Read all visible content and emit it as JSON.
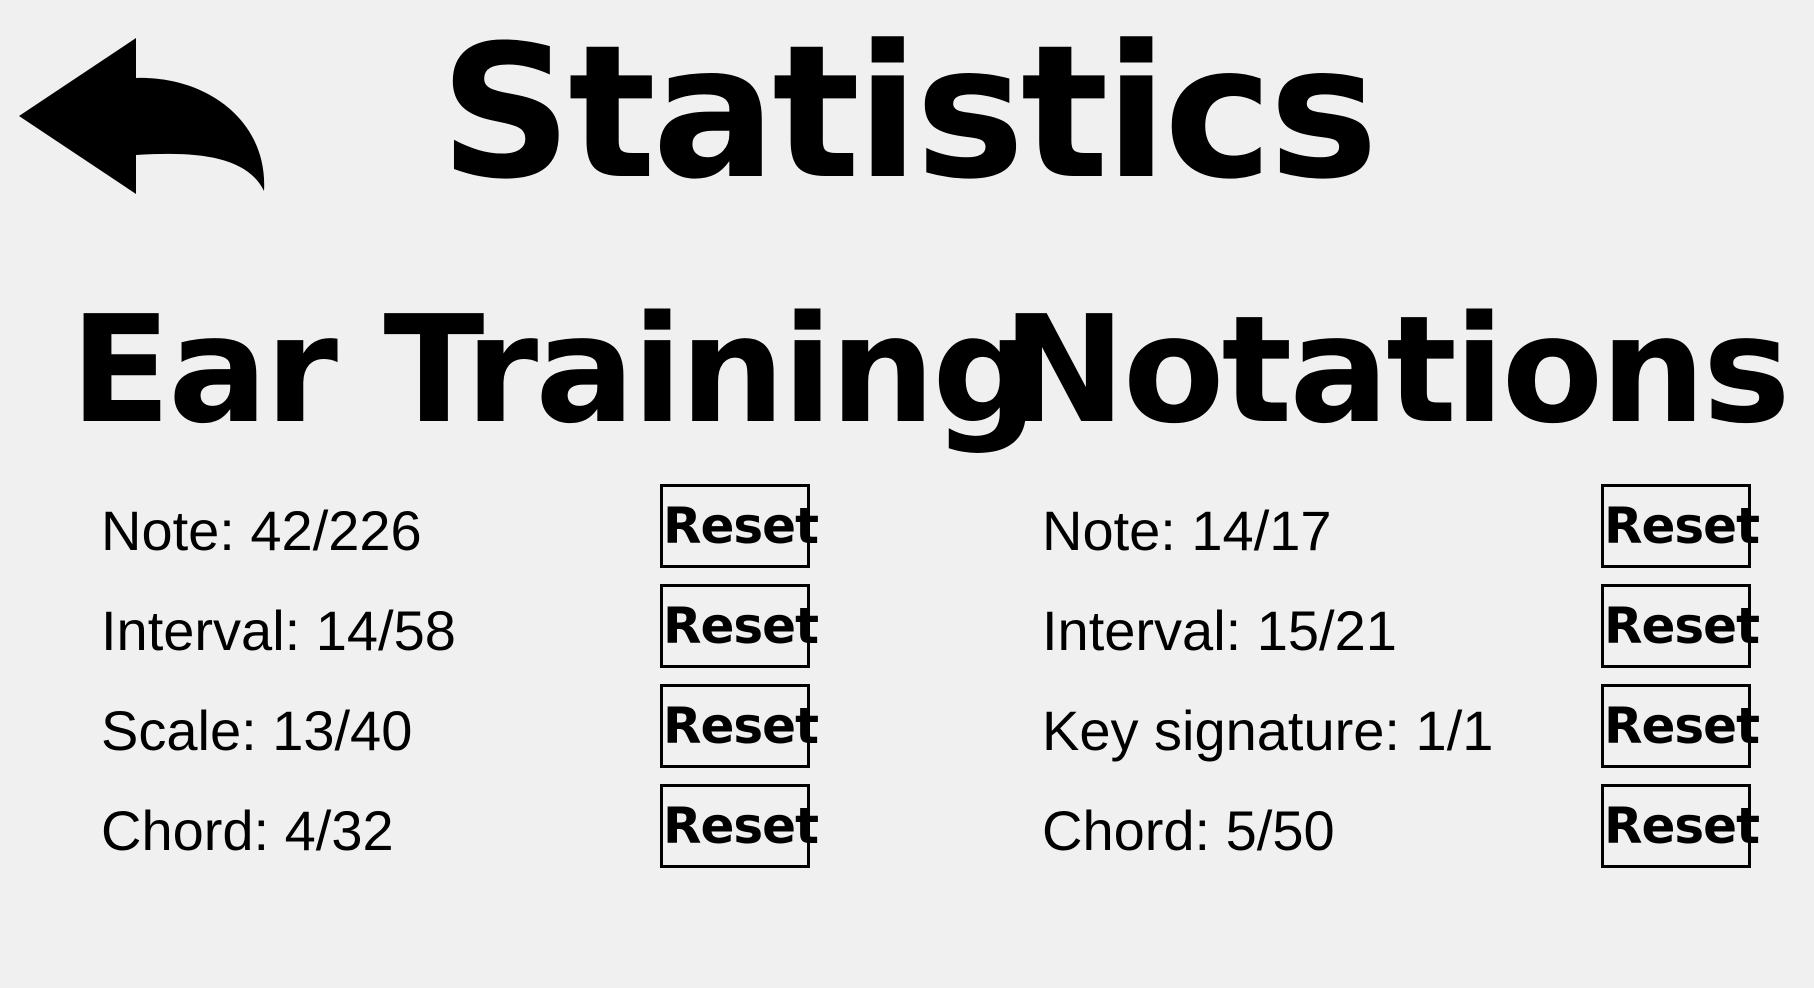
{
  "header": {
    "title": "Statistics",
    "back_icon": "back-arrow-icon"
  },
  "ear_training": {
    "heading": "Ear Training",
    "rows": [
      {
        "label": "Note: 42/226",
        "button": "Reset"
      },
      {
        "label": "Interval: 14/58",
        "button": "Reset"
      },
      {
        "label": "Scale: 13/40",
        "button": "Reset"
      },
      {
        "label": "Chord: 4/32",
        "button": "Reset"
      }
    ]
  },
  "notations": {
    "heading": "Notations",
    "rows": [
      {
        "label": "Note: 14/17",
        "button": "Reset"
      },
      {
        "label": "Interval: 15/21",
        "button": "Reset"
      },
      {
        "label": "Key signature: 1/1",
        "button": "Reset"
      },
      {
        "label": "Chord: 5/50",
        "button": "Reset"
      }
    ]
  }
}
